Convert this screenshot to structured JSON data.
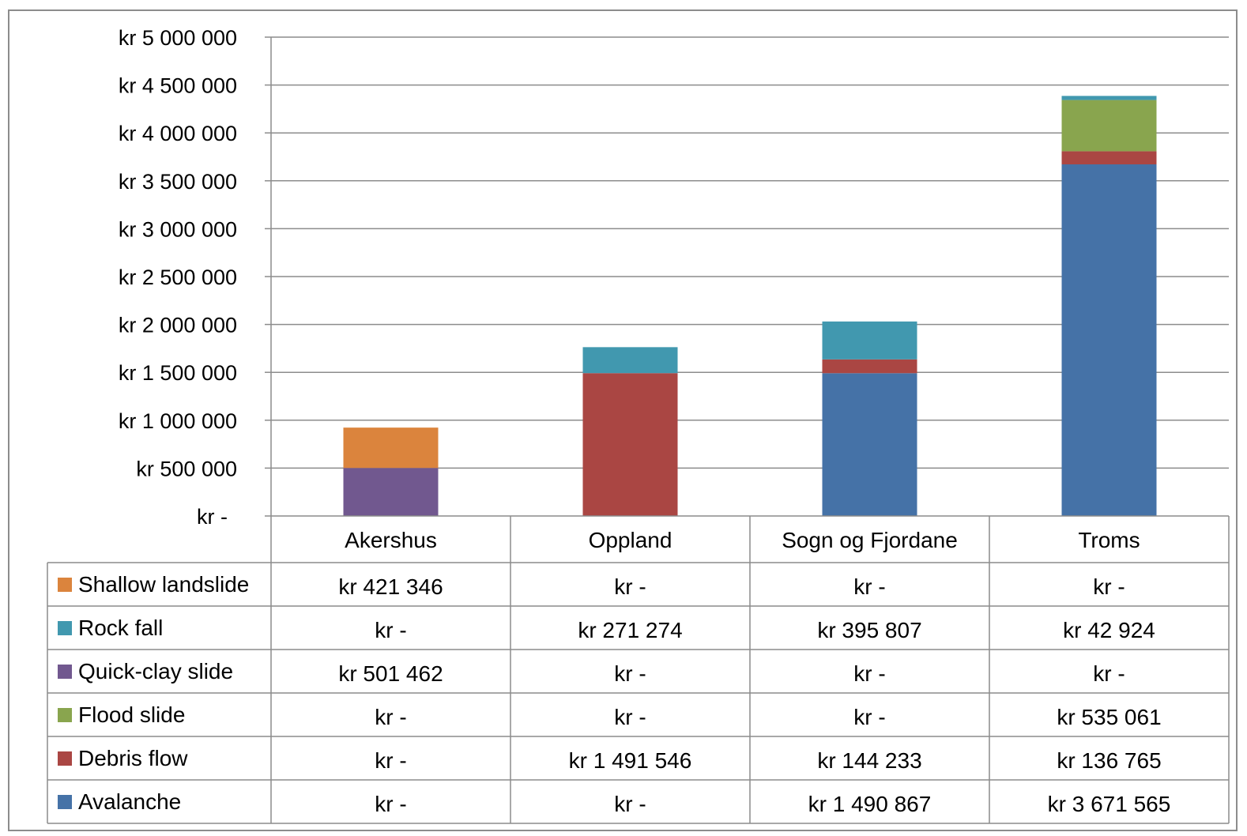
{
  "chart_data": {
    "type": "bar",
    "stacked": true,
    "categories": [
      "Akershus",
      "Oppland",
      "Sogn og Fjordane",
      "Troms"
    ],
    "y_ticks": [
      "kr -",
      "kr 500 000",
      "kr 1 000 000",
      "kr 1 500 000",
      "kr 2 000 000",
      "kr 2 500 000",
      "kr 3 000 000",
      "kr 3 500 000",
      "kr 4 000 000",
      "kr 4 500 000",
      "kr 5 000 000"
    ],
    "ylim": [
      0,
      5000000
    ],
    "grid": true,
    "legend_placement": "data table",
    "series": [
      {
        "name": "Avalanche",
        "color": "#4572A7",
        "values": [
          0,
          0,
          1490867,
          3671565
        ],
        "labels": [
          "kr -",
          "kr -",
          "kr 1 490 867",
          "kr 3 671 565"
        ]
      },
      {
        "name": "Debris flow",
        "color": "#AA4643",
        "values": [
          0,
          1491546,
          144233,
          136765
        ],
        "labels": [
          "kr -",
          "kr 1 491 546",
          "kr 144 233",
          "kr 136 765"
        ]
      },
      {
        "name": "Flood slide",
        "color": "#89A54E",
        "values": [
          0,
          0,
          0,
          535061
        ],
        "labels": [
          "kr -",
          "kr -",
          "kr -",
          "kr 535 061"
        ]
      },
      {
        "name": "Quick-clay slide",
        "color": "#71588F",
        "values": [
          501462,
          0,
          0,
          0
        ],
        "labels": [
          "kr 501 462",
          "kr -",
          "kr -",
          "kr -"
        ]
      },
      {
        "name": "Rock fall",
        "color": "#4198AF",
        "values": [
          0,
          271274,
          395807,
          42924
        ],
        "labels": [
          "kr -",
          "kr 271 274",
          "kr 395 807",
          "kr 42 924"
        ]
      },
      {
        "name": "Shallow landslide",
        "color": "#DB843D",
        "values": [
          421346,
          0,
          0,
          0
        ],
        "labels": [
          "kr 421 346",
          "kr -",
          "kr -",
          "kr -"
        ]
      }
    ],
    "table_row_order": [
      "Shallow landslide",
      "Rock fall",
      "Quick-clay slide",
      "Flood slide",
      "Debris flow",
      "Avalanche"
    ]
  }
}
